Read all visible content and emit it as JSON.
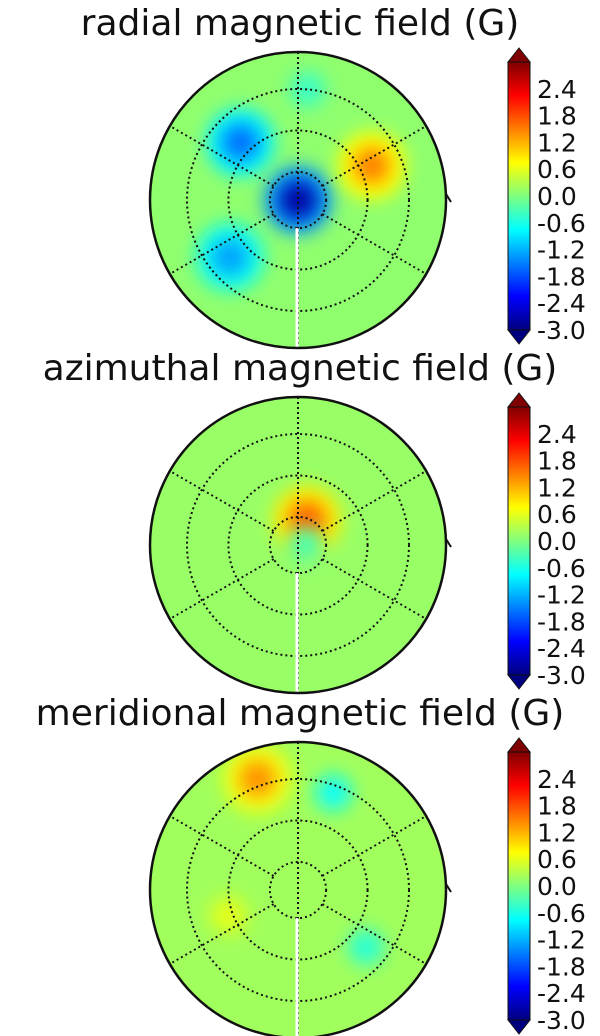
{
  "figure": {
    "colorbar": {
      "ticks": [
        "2.4",
        "1.8",
        "1.2",
        "0.6",
        "0.0",
        "-0.6",
        "-1.2",
        "-1.8",
        "-2.4",
        "-3.0"
      ],
      "min": -3.0,
      "max": 3.0,
      "colormap": [
        "#00007f",
        "#0000ff",
        "#007fff",
        "#00ffff",
        "#7fff7f",
        "#ffff00",
        "#ff7f00",
        "#ff0000",
        "#7f0000"
      ]
    }
  },
  "chart_data": [
    {
      "type": "heatmap",
      "projection": "polar",
      "title": "radial magnetic field (G)",
      "vmin": -3.0,
      "vmax": 3.0,
      "background_value": 0.1,
      "features": [
        {
          "r": 0.0,
          "theta": 0,
          "value": -2.8
        },
        {
          "r": 0.55,
          "theta": 135,
          "value": -1.6
        },
        {
          "r": 0.6,
          "theta": 220,
          "value": -1.3
        },
        {
          "r": 0.55,
          "theta": 25,
          "value": 1.5
        },
        {
          "r": 0.75,
          "theta": 85,
          "value": -0.4
        }
      ],
      "grid": true
    },
    {
      "type": "heatmap",
      "projection": "polar",
      "title": "azimuthal magnetic field (G)",
      "vmin": -3.0,
      "vmax": 3.0,
      "background_value": 0.15,
      "features": [
        {
          "r": 0.18,
          "theta": 70,
          "value": 1.7
        },
        {
          "r": 0.05,
          "theta": 0,
          "value": -0.3
        }
      ],
      "grid": true
    },
    {
      "type": "heatmap",
      "projection": "polar",
      "title": "meridional magnetic field (G)",
      "vmin": -3.0,
      "vmax": 3.0,
      "background_value": 0.2,
      "features": [
        {
          "r": 0.8,
          "theta": 110,
          "value": 1.4
        },
        {
          "r": 0.7,
          "theta": 70,
          "value": -0.7
        },
        {
          "r": 0.6,
          "theta": 320,
          "value": -0.5
        },
        {
          "r": 0.5,
          "theta": 200,
          "value": 0.6
        }
      ],
      "grid": true
    }
  ]
}
